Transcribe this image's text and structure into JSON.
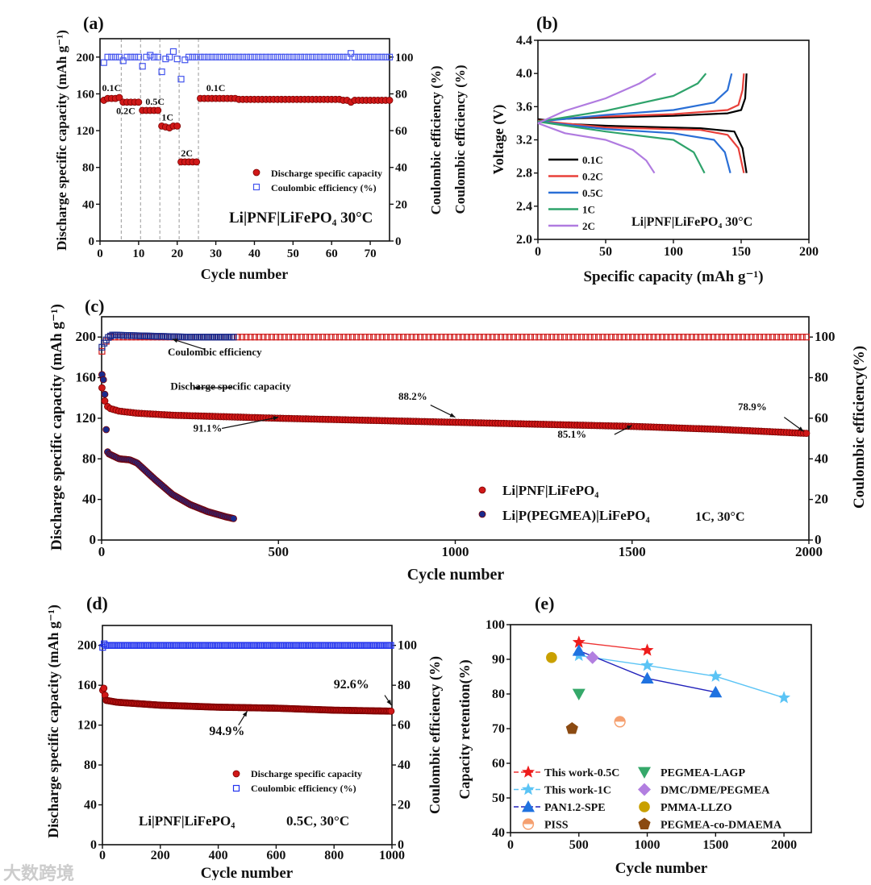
{
  "watermark": "大数跨境",
  "chart_data": [
    {
      "id": "a",
      "type": "scatter",
      "panel_label": "(a)",
      "xlabel": "Cycle number",
      "ylabel": "Discharge specific capacity (mAh g⁻¹)",
      "y2label": "Coulombic efficiency (%)",
      "xlim": [
        0,
        75
      ],
      "ylim": [
        0,
        220
      ],
      "y2lim": [
        0,
        110
      ],
      "xticks": [
        0,
        10,
        20,
        30,
        40,
        50,
        60,
        70
      ],
      "yticks": [
        0,
        40,
        80,
        120,
        160,
        200
      ],
      "y2ticks": [
        0,
        20,
        40,
        60,
        80,
        100
      ],
      "rate_dividers": [
        5.5,
        10.5,
        15.5,
        20.5,
        25.5
      ],
      "rate_labels": [
        {
          "text": "0.1C",
          "x": 3,
          "y": 163
        },
        {
          "text": "0.2C",
          "x": 7.5,
          "y": 138
        },
        {
          "text": "0.5C",
          "x": 13,
          "y": 148
        },
        {
          "text": "1C",
          "x": 17.5,
          "y": 131
        },
        {
          "text": "2C",
          "x": 22.5,
          "y": 92
        },
        {
          "text": "0.1C",
          "x": 30,
          "y": 163
        }
      ],
      "annotation": "Li|PNF|LiFePO₄ 30°C",
      "legend": [
        "Discharge specific capacity",
        "Coulombic efficiency (%)"
      ],
      "series": [
        {
          "name": "Discharge specific capacity",
          "axis": "left",
          "values": [
            153,
            155,
            155,
            155,
            156,
            151,
            151,
            151,
            151,
            151,
            142,
            142,
            142,
            142,
            142,
            125,
            124,
            123,
            125,
            125,
            86,
            86,
            86,
            86,
            86,
            155,
            155,
            155,
            155,
            155,
            155,
            155,
            155,
            155,
            155,
            154,
            154,
            154,
            154,
            154,
            154,
            154,
            154,
            154,
            154,
            154,
            154,
            154,
            154,
            154,
            154,
            154,
            154,
            154,
            154,
            154,
            154,
            154,
            154,
            154,
            154,
            154,
            153,
            153,
            151,
            153,
            153,
            153,
            153,
            153,
            153,
            153,
            153,
            153,
            153
          ]
        },
        {
          "name": "Coulombic efficiency (%)",
          "axis": "right",
          "values": [
            97,
            100,
            100,
            100,
            100,
            98,
            100,
            100,
            100,
            100,
            95,
            100,
            101,
            100,
            100,
            92,
            99,
            100,
            103,
            99,
            88,
            98.5,
            100,
            100,
            100,
            100,
            100,
            100,
            100,
            100,
            100,
            100,
            100,
            100,
            100,
            100,
            100,
            100,
            100,
            100,
            100,
            100,
            100,
            100,
            100,
            100,
            100,
            100,
            100,
            100,
            100,
            100,
            100,
            100,
            100,
            100,
            100,
            100,
            100,
            100,
            100,
            100,
            100,
            100,
            102,
            100,
            100,
            100,
            100,
            100,
            100,
            100,
            100,
            100,
            100
          ]
        }
      ]
    },
    {
      "id": "b",
      "type": "line",
      "panel_label": "(b)",
      "xlabel": "Specific capacity (mAh g⁻¹)",
      "ylabel": "Voltage (V)",
      "left_clip_label": "Coulombic efficiency (%)",
      "xlim": [
        0,
        200
      ],
      "ylim": [
        2.0,
        4.4
      ],
      "xticks": [
        0,
        50,
        100,
        150,
        200
      ],
      "yticks": [
        2.0,
        2.4,
        2.8,
        3.2,
        3.6,
        4.0,
        4.4
      ],
      "annotation": "Li|PNF|LiFePO₄  30°C",
      "series": [
        {
          "name": "0.1C",
          "color": "#000000",
          "charge": [
            [
              0,
              3.45
            ],
            [
              5,
              3.44
            ],
            [
              30,
              3.46
            ],
            [
              100,
              3.49
            ],
            [
              140,
              3.52
            ],
            [
              150,
              3.56
            ],
            [
              153,
              3.7
            ],
            [
              154,
              4.0
            ]
          ],
          "discharge": [
            [
              0,
              3.44
            ],
            [
              10,
              3.4
            ],
            [
              50,
              3.37
            ],
            [
              120,
              3.34
            ],
            [
              145,
              3.3
            ],
            [
              151,
              3.1
            ],
            [
              154,
              2.8
            ]
          ]
        },
        {
          "name": "0.2C",
          "color": "#e8403a",
          "charge": [
            [
              0,
              3.43
            ],
            [
              30,
              3.47
            ],
            [
              100,
              3.51
            ],
            [
              140,
              3.56
            ],
            [
              148,
              3.62
            ],
            [
              151,
              3.8
            ],
            [
              152,
              4.0
            ]
          ],
          "discharge": [
            [
              0,
              3.43
            ],
            [
              50,
              3.35
            ],
            [
              120,
              3.32
            ],
            [
              140,
              3.26
            ],
            [
              148,
              3.1
            ],
            [
              152,
              2.8
            ]
          ]
        },
        {
          "name": "0.5C",
          "color": "#2a6fd6",
          "charge": [
            [
              0,
              3.42
            ],
            [
              50,
              3.5
            ],
            [
              100,
              3.56
            ],
            [
              130,
              3.65
            ],
            [
              140,
              3.8
            ],
            [
              143,
              4.0
            ]
          ],
          "discharge": [
            [
              0,
              3.42
            ],
            [
              50,
              3.33
            ],
            [
              100,
              3.28
            ],
            [
              130,
              3.2
            ],
            [
              138,
              3.05
            ],
            [
              142,
              2.8
            ]
          ]
        },
        {
          "name": "1C",
          "color": "#2fa36b",
          "charge": [
            [
              0,
              3.42
            ],
            [
              50,
              3.55
            ],
            [
              100,
              3.73
            ],
            [
              118,
              3.88
            ],
            [
              124,
              4.0
            ]
          ],
          "discharge": [
            [
              0,
              3.42
            ],
            [
              50,
              3.3
            ],
            [
              100,
              3.2
            ],
            [
              115,
              3.05
            ],
            [
              123,
              2.8
            ]
          ]
        },
        {
          "name": "2C",
          "color": "#b07be0",
          "charge": [
            [
              0,
              3.4
            ],
            [
              20,
              3.55
            ],
            [
              50,
              3.7
            ],
            [
              75,
              3.88
            ],
            [
              87,
              4.0
            ]
          ],
          "discharge": [
            [
              0,
              3.4
            ],
            [
              20,
              3.28
            ],
            [
              50,
              3.2
            ],
            [
              70,
              3.08
            ],
            [
              80,
              2.95
            ],
            [
              86,
              2.8
            ]
          ]
        }
      ]
    },
    {
      "id": "c",
      "type": "scatter",
      "panel_label": "(c)",
      "xlabel": "Cycle number",
      "ylabel": "Discharge specific capacity (mAh g⁻¹)",
      "y2label": "Coulombic efficiency(%)",
      "xlim": [
        0,
        2000
      ],
      "ylim": [
        0,
        220
      ],
      "y2lim": [
        0,
        110
      ],
      "xticks": [
        0,
        500,
        1000,
        1500,
        2000
      ],
      "yticks": [
        0,
        40,
        80,
        120,
        160,
        200
      ],
      "y2ticks": [
        0,
        20,
        40,
        60,
        80,
        100
      ],
      "annotations": [
        {
          "text": "Coulombic efficiency",
          "x": 320,
          "y": 182,
          "ax": 290,
          "ay": 188,
          "tx": 200,
          "ty": 198
        },
        {
          "text": "Discharge specific capacity",
          "x": 365,
          "y": 148,
          "ax": 370,
          "ay": 150,
          "tx": 260,
          "ty": 150
        },
        {
          "text": "91.1%",
          "x": 300,
          "y": 107,
          "ax": 340,
          "ay": 110,
          "tx": 500,
          "ty": 121
        },
        {
          "text": "88.2%",
          "x": 880,
          "y": 138,
          "ax": 930,
          "ay": 133,
          "tx": 1000,
          "ty": 121
        },
        {
          "text": "85.1%",
          "x": 1330,
          "y": 101,
          "ax": 1450,
          "ay": 104,
          "tx": 1500,
          "ty": 113
        },
        {
          "text": "78.9%",
          "x": 1840,
          "y": 128,
          "ax": 1930,
          "ay": 121,
          "tx": 1985,
          "ty": 107
        }
      ],
      "legend": [
        "Li|PNF|LiFePO₄",
        "Li|P(PEGMEA)|LiFePO₄"
      ],
      "condition": "1C, 30°C",
      "series": [
        {
          "name": "Li|PNF|LiFePO₄ capacity",
          "axis": "left",
          "color": "#d01818",
          "x": [
            1,
            5,
            10,
            20,
            50,
            100,
            200,
            300,
            500,
            750,
            1000,
            1250,
            1500,
            1750,
            2000
          ],
          "y": [
            150,
            145,
            135,
            130,
            127,
            125,
            123,
            122,
            120,
            118,
            116,
            114,
            112,
            109,
            105
          ]
        },
        {
          "name": "Li|PNF|LiFePO₄ CE",
          "axis": "right",
          "color": "#d01818",
          "x": [
            1,
            10,
            20,
            50,
            2000
          ],
          "y": [
            93,
            97,
            100,
            100,
            100
          ]
        },
        {
          "name": "Li|P(PEGMEA)|LiFePO₄ capacity",
          "axis": "left",
          "color": "#1a2a8c",
          "x": [
            1,
            5,
            10,
            15,
            20,
            50,
            80,
            100,
            150,
            200,
            250,
            300,
            350,
            375
          ],
          "y": [
            163,
            158,
            140,
            88,
            85,
            80,
            79,
            76,
            60,
            45,
            35,
            28,
            23,
            21
          ]
        },
        {
          "name": "Li|P(PEGMEA)|LiFePO₄ CE",
          "axis": "right",
          "color": "#1a2a8c",
          "x": [
            1,
            10,
            20,
            30,
            240,
            375
          ],
          "y": [
            95,
            98,
            100,
            101,
            100,
            100
          ]
        }
      ]
    },
    {
      "id": "d",
      "type": "scatter",
      "panel_label": "(d)",
      "xlabel": "Cycle number",
      "ylabel": "Discharge specific capacity (mAh g⁻¹)",
      "y2label": "Coulombic efficiency (%)",
      "xlim": [
        0,
        1000
      ],
      "ylim": [
        0,
        220
      ],
      "y2lim": [
        0,
        110
      ],
      "xticks": [
        0,
        200,
        400,
        600,
        800,
        1000
      ],
      "yticks": [
        0,
        40,
        80,
        120,
        160,
        200
      ],
      "y2ticks": [
        0,
        20,
        40,
        60,
        80,
        100
      ],
      "annotations": [
        {
          "text": "94.9%",
          "x": 430,
          "y": 110,
          "ax": 470,
          "ay": 120,
          "tx": 500,
          "ty": 134
        },
        {
          "text": "92.6%",
          "x": 860,
          "y": 157,
          "ax": 975,
          "ay": 150,
          "tx": 998,
          "ty": 140
        }
      ],
      "legend": [
        "Discharge specific capacity",
        "Coulombic efficiency (%)"
      ],
      "annotation": "Li|PNF|LiFePO₄",
      "condition": "0.5C, 30°C",
      "series": [
        {
          "name": "Discharge specific capacity",
          "axis": "left",
          "color": "#d01818",
          "x": [
            1,
            5,
            8,
            10,
            50,
            100,
            200,
            400,
            600,
            800,
            1000
          ],
          "y": [
            155,
            157,
            155,
            145,
            143,
            142,
            140,
            138,
            137,
            135,
            134
          ]
        },
        {
          "name": "Coulombic efficiency (%)",
          "axis": "right",
          "color": "#2233ee",
          "x": [
            1,
            5,
            10,
            1000
          ],
          "y": [
            99,
            101,
            100,
            100
          ]
        }
      ]
    },
    {
      "id": "e",
      "type": "scatter",
      "panel_label": "(e)",
      "xlabel": "Cycle number",
      "ylabel": "Capacity retention(%)",
      "xlim": [
        0,
        2200
      ],
      "ylim": [
        40,
        100
      ],
      "xticks": [
        0,
        500,
        1000,
        1500,
        2000
      ],
      "yticks": [
        40,
        50,
        60,
        70,
        80,
        90,
        100
      ],
      "series": [
        {
          "name": "This work-0.5C",
          "marker": "star",
          "color": "#ee1c1c",
          "line": "#e33",
          "x": [
            500,
            1000
          ],
          "y": [
            94.9,
            92.6
          ]
        },
        {
          "name": "This work-1C",
          "marker": "star",
          "color": "#5bc4f5",
          "line": "#5bc4f5",
          "x": [
            500,
            1000,
            1500,
            2000
          ],
          "y": [
            91.1,
            88.2,
            85.1,
            78.9
          ]
        },
        {
          "name": "PAN1.2-SPE",
          "marker": "triangle",
          "color": "#1f72e0",
          "line": "#2222bb",
          "x": [
            500,
            1000,
            1500
          ],
          "y": [
            92.5,
            84.5,
            80.5
          ]
        },
        {
          "name": "PISS",
          "marker": "halfcircle",
          "color": "#f5a070",
          "x": [
            800
          ],
          "y": [
            72
          ]
        },
        {
          "name": "PEGMEA-LAGP",
          "marker": "downtriangle",
          "color": "#35a86a",
          "x": [
            500
          ],
          "y": [
            80
          ]
        },
        {
          "name": "DMC/DME/PEGMEA",
          "marker": "diamond",
          "color": "#b27fe0",
          "x": [
            600
          ],
          "y": [
            90.5
          ]
        },
        {
          "name": "PMMA-LLZO",
          "marker": "circle",
          "color": "#c9a000",
          "x": [
            300
          ],
          "y": [
            90.5
          ]
        },
        {
          "name": "PEGMEA-co-DMAEMA",
          "marker": "pentagon",
          "color": "#8b4a12",
          "x": [
            450
          ],
          "y": [
            70
          ]
        }
      ]
    }
  ]
}
